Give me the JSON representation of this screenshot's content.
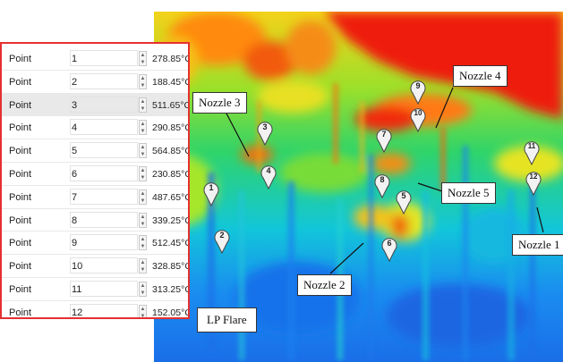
{
  "thermal_view": {
    "callouts": {
      "nozzle3": "Nozzle 3",
      "nozzle4": "Nozzle 4",
      "nozzle5": "Nozzle 5",
      "nozzle2": "Nozzle 2",
      "nozzle1": "Nozzle 1",
      "lp_flare": "LP Flare"
    },
    "markers": [
      "1",
      "2",
      "3",
      "4",
      "5",
      "6",
      "7",
      "8",
      "9",
      "10",
      "11",
      "12"
    ]
  },
  "points_panel": {
    "border_color": "#e53030",
    "row_label": "Point",
    "selected_index": 2,
    "rows": [
      {
        "id": "1",
        "temp": "278.85°C"
      },
      {
        "id": "2",
        "temp": "188.45°C"
      },
      {
        "id": "3",
        "temp": "511.65°C"
      },
      {
        "id": "4",
        "temp": "290.85°C"
      },
      {
        "id": "5",
        "temp": "564.85°C"
      },
      {
        "id": "6",
        "temp": "230.85°C"
      },
      {
        "id": "7",
        "temp": "487.65°C"
      },
      {
        "id": "8",
        "temp": "339.25°C"
      },
      {
        "id": "9",
        "temp": "512.45°C"
      },
      {
        "id": "10",
        "temp": "328.85°C"
      },
      {
        "id": "11",
        "temp": "313.25°C"
      },
      {
        "id": "12",
        "temp": "152.05°C"
      }
    ]
  }
}
